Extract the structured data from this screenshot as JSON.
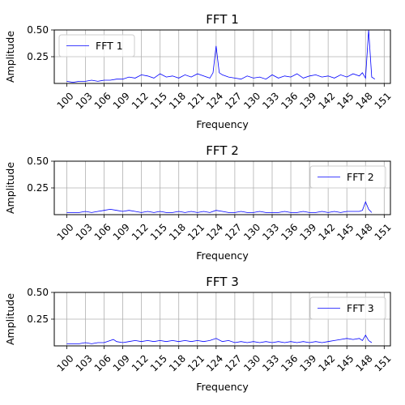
{
  "chart_data": [
    {
      "type": "line",
      "title": "FFT 1",
      "xlabel": "Frequency",
      "ylabel": "Amplitude",
      "xlim": [
        98,
        152
      ],
      "ylim": [
        0,
        0.5
      ],
      "xticks": [
        "100",
        "103",
        "106",
        "109",
        "112",
        "115",
        "118",
        "121",
        "124",
        "127",
        "130",
        "133",
        "136",
        "139",
        "142",
        "145",
        "148",
        "151"
      ],
      "yticks": [
        "0.25",
        "0.50"
      ],
      "grid": true,
      "legend_position": "top-left",
      "series": [
        {
          "name": "FFT 1",
          "color": "#0000ff",
          "x": [
            100,
            101,
            102,
            103,
            104,
            105,
            106,
            107,
            108,
            109,
            110,
            111,
            112,
            113,
            114,
            115,
            116,
            117,
            118,
            119,
            120,
            121,
            122,
            123,
            123.5,
            124,
            124.5,
            125,
            126,
            127,
            128,
            129,
            130,
            131,
            132,
            133,
            134,
            135,
            136,
            137,
            138,
            139,
            140,
            141,
            142,
            143,
            144,
            145,
            146,
            147,
            147.5,
            148,
            148.5,
            149,
            149.5
          ],
          "y": [
            0.02,
            0.01,
            0.02,
            0.02,
            0.03,
            0.02,
            0.03,
            0.03,
            0.04,
            0.04,
            0.06,
            0.05,
            0.08,
            0.07,
            0.05,
            0.09,
            0.06,
            0.07,
            0.05,
            0.08,
            0.06,
            0.09,
            0.07,
            0.05,
            0.1,
            0.35,
            0.1,
            0.08,
            0.06,
            0.05,
            0.04,
            0.07,
            0.05,
            0.06,
            0.04,
            0.08,
            0.05,
            0.07,
            0.06,
            0.09,
            0.05,
            0.07,
            0.08,
            0.06,
            0.07,
            0.05,
            0.08,
            0.06,
            0.09,
            0.07,
            0.1,
            0.05,
            0.5,
            0.06,
            0.04
          ]
        }
      ]
    },
    {
      "type": "line",
      "title": "FFT 2",
      "xlabel": "Frequency",
      "ylabel": "Amplitude",
      "xlim": [
        98,
        152
      ],
      "ylim": [
        0,
        0.5
      ],
      "xticks": [
        "100",
        "103",
        "106",
        "109",
        "112",
        "115",
        "118",
        "121",
        "124",
        "127",
        "130",
        "133",
        "136",
        "139",
        "142",
        "145",
        "148",
        "151"
      ],
      "yticks": [
        "0.25",
        "0.50"
      ],
      "grid": true,
      "legend_position": "top-right",
      "series": [
        {
          "name": "FFT 2",
          "color": "#0000ff",
          "x": [
            100,
            101,
            102,
            103,
            104,
            105,
            106,
            107,
            108,
            109,
            110,
            111,
            112,
            113,
            114,
            115,
            116,
            117,
            118,
            119,
            120,
            121,
            122,
            123,
            124,
            125,
            126,
            127,
            128,
            129,
            130,
            131,
            132,
            133,
            134,
            135,
            136,
            137,
            138,
            139,
            140,
            141,
            142,
            143,
            144,
            145,
            146,
            147,
            147.5,
            148,
            148.5,
            149
          ],
          "y": [
            0.02,
            0.02,
            0.02,
            0.03,
            0.02,
            0.03,
            0.04,
            0.05,
            0.04,
            0.03,
            0.04,
            0.03,
            0.02,
            0.03,
            0.02,
            0.03,
            0.02,
            0.02,
            0.03,
            0.02,
            0.03,
            0.02,
            0.03,
            0.02,
            0.04,
            0.03,
            0.02,
            0.02,
            0.03,
            0.02,
            0.02,
            0.03,
            0.02,
            0.02,
            0.02,
            0.03,
            0.02,
            0.02,
            0.03,
            0.02,
            0.02,
            0.03,
            0.02,
            0.03,
            0.02,
            0.03,
            0.03,
            0.03,
            0.04,
            0.12,
            0.05,
            0.02
          ]
        }
      ]
    },
    {
      "type": "line",
      "title": "FFT 3",
      "xlabel": "Frequency",
      "ylabel": "Amplitude",
      "xlim": [
        98,
        152
      ],
      "ylim": [
        0,
        0.5
      ],
      "xticks": [
        "100",
        "103",
        "106",
        "109",
        "112",
        "115",
        "118",
        "121",
        "124",
        "127",
        "130",
        "133",
        "136",
        "139",
        "142",
        "145",
        "148",
        "151"
      ],
      "yticks": [
        "0.25",
        "0.50"
      ],
      "grid": true,
      "legend_position": "top-right",
      "series": [
        {
          "name": "FFT 3",
          "color": "#0000ff",
          "x": [
            100,
            101,
            102,
            103,
            104,
            105,
            106,
            107,
            107.5,
            108,
            109,
            110,
            111,
            112,
            113,
            114,
            115,
            116,
            117,
            118,
            119,
            120,
            121,
            122,
            123,
            124,
            125,
            126,
            127,
            128,
            129,
            130,
            131,
            132,
            133,
            134,
            135,
            136,
            137,
            138,
            139,
            140,
            141,
            142,
            143,
            144,
            145,
            146,
            147,
            147.5,
            148,
            148.5,
            149
          ],
          "y": [
            0.02,
            0.02,
            0.02,
            0.03,
            0.02,
            0.03,
            0.03,
            0.05,
            0.06,
            0.04,
            0.03,
            0.04,
            0.05,
            0.04,
            0.05,
            0.04,
            0.05,
            0.04,
            0.05,
            0.04,
            0.05,
            0.04,
            0.05,
            0.04,
            0.05,
            0.07,
            0.04,
            0.05,
            0.03,
            0.04,
            0.03,
            0.04,
            0.03,
            0.04,
            0.03,
            0.04,
            0.03,
            0.04,
            0.03,
            0.04,
            0.03,
            0.04,
            0.03,
            0.04,
            0.05,
            0.06,
            0.07,
            0.06,
            0.07,
            0.05,
            0.1,
            0.05,
            0.03
          ]
        }
      ]
    }
  ]
}
